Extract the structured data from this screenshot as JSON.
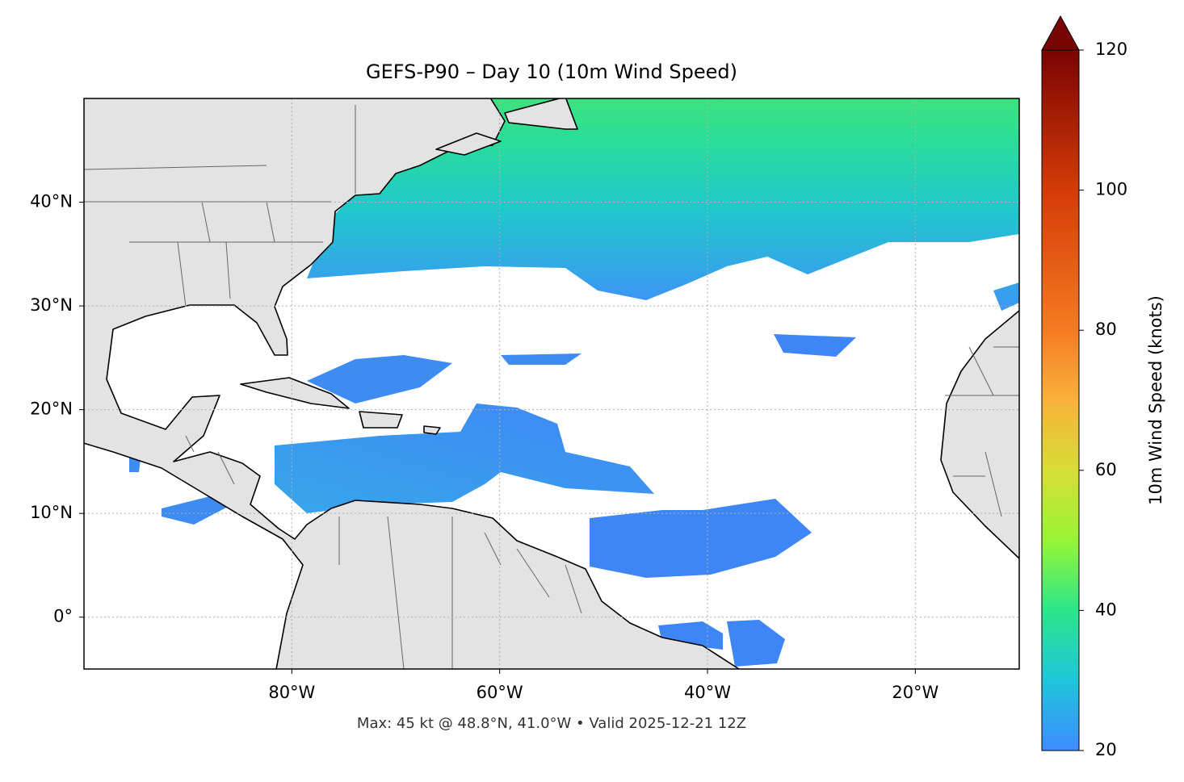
{
  "chart_data": {
    "type": "map",
    "title": "GEFS-P90 – Day 10 (10m Wind Speed)",
    "footer": "Max: 45 kt @ 48.8°N, 41.0°W • Valid 2025-12-21 12Z",
    "xlim": [
      -100,
      -10
    ],
    "ylim": [
      -5,
      50
    ],
    "xticks": [
      {
        "value": -80,
        "label": "80°W"
      },
      {
        "value": -60,
        "label": "60°W"
      },
      {
        "value": -40,
        "label": "40°W"
      },
      {
        "value": -20,
        "label": "20°W"
      }
    ],
    "yticks": [
      {
        "value": 0,
        "label": "0°"
      },
      {
        "value": 10,
        "label": "10°N"
      },
      {
        "value": 20,
        "label": "20°N"
      },
      {
        "value": 30,
        "label": "30°N"
      },
      {
        "value": 40,
        "label": "40°N"
      }
    ],
    "grid": true,
    "colorbar": {
      "label": "10m Wind Speed (knots)",
      "lim": [
        20,
        120
      ],
      "ticks": [
        20,
        40,
        60,
        80,
        100,
        120
      ],
      "extend": "max"
    }
  }
}
